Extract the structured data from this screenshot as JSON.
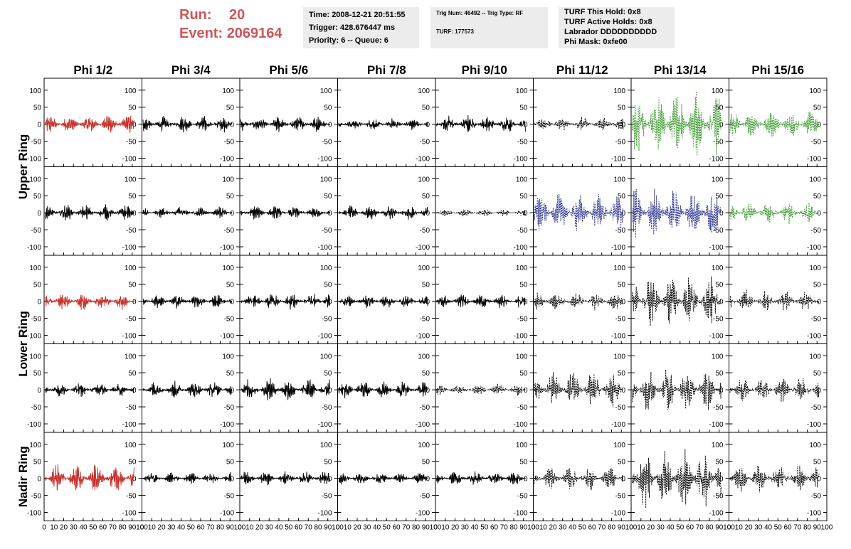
{
  "header": {
    "run_label": "Run:",
    "run_value": "20",
    "event_label": "Event:",
    "event_value": "2069164",
    "time": "Time: 2008-12-21 20:51:55",
    "trigger": "Trigger: 428.676447 ms",
    "priority": "Priority: 6 -- Queue: 6",
    "trig_num": "Trig Num: 46492 -- Trig Type: RF",
    "turf": "TURF: 177573",
    "turf_this_hold": "TURF This Hold: 0x8",
    "turf_active_holds": "TURF Active Holds: 0x8",
    "labrador": "Labrador DDDDDDDDDD",
    "phi_mask": "Phi Mask: 0xfe00"
  },
  "chart_data": {
    "type": "line",
    "columns": [
      "Phi 1/2",
      "Phi 3/4",
      "Phi 5/6",
      "Phi 7/8",
      "Phi 9/10",
      "Phi 11/12",
      "Phi 13/14",
      "Phi 15/16"
    ],
    "row_labels": [
      {
        "text": "Upper Ring",
        "rows": [
          0,
          1
        ]
      },
      {
        "text": "Lower Ring",
        "rows": [
          2,
          3
        ]
      },
      {
        "text": "Nadir Ring",
        "rows": [
          4
        ]
      }
    ],
    "xlim": [
      0,
      100
    ],
    "ylim": [
      -125,
      135
    ],
    "y_ticks": [
      -100,
      -50,
      0,
      50,
      100
    ],
    "y_tick_labels": [
      "-100",
      "-50",
      "0",
      "50",
      "100"
    ],
    "x_ticks": [
      0,
      10,
      20,
      30,
      40,
      50,
      60,
      70,
      80,
      90,
      100
    ],
    "x_tick_labels": [
      "0",
      "10",
      "20",
      "30",
      "40",
      "50",
      "60",
      "70",
      "80",
      "90",
      "100"
    ],
    "colors": {
      "black": "#000000",
      "red": "#c8312c",
      "green": "#3a9a2e",
      "blue": "#2b2f8f"
    },
    "panels": [
      [
        {
          "color": "red",
          "style": "solid",
          "amp": 25
        },
        {
          "color": "black",
          "style": "solid",
          "amp": 20
        },
        {
          "color": "black",
          "style": "solid",
          "amp": 20
        },
        {
          "color": "black",
          "style": "solid",
          "amp": 15
        },
        {
          "color": "black",
          "style": "solid",
          "amp": 22
        },
        {
          "color": "black",
          "style": "dashed",
          "amp": 18
        },
        {
          "color": "green",
          "style": "dashed",
          "amp": 80
        },
        {
          "color": "green",
          "style": "dashed",
          "amp": 35
        }
      ],
      [
        {
          "color": "black",
          "style": "solid",
          "amp": 20
        },
        {
          "color": "black",
          "style": "solid",
          "amp": 15
        },
        {
          "color": "black",
          "style": "solid",
          "amp": 18
        },
        {
          "color": "black",
          "style": "solid",
          "amp": 18
        },
        {
          "color": "black",
          "style": "dashed",
          "amp": 10
        },
        {
          "color": "blue",
          "style": "dashed",
          "amp": 55
        },
        {
          "color": "blue",
          "style": "dashed",
          "amp": 65
        },
        {
          "color": "green",
          "style": "dashed",
          "amp": 28
        }
      ],
      [
        {
          "color": "red",
          "style": "solid",
          "amp": 22
        },
        {
          "color": "black",
          "style": "solid",
          "amp": 18
        },
        {
          "color": "black",
          "style": "solid",
          "amp": 22
        },
        {
          "color": "black",
          "style": "solid",
          "amp": 18
        },
        {
          "color": "black",
          "style": "solid",
          "amp": 18
        },
        {
          "color": "black",
          "style": "dashed",
          "amp": 22
        },
        {
          "color": "black",
          "style": "dashed",
          "amp": 65
        },
        {
          "color": "black",
          "style": "dashed",
          "amp": 28
        }
      ],
      [
        {
          "color": "black",
          "style": "solid",
          "amp": 18
        },
        {
          "color": "black",
          "style": "solid",
          "amp": 22
        },
        {
          "color": "black",
          "style": "solid",
          "amp": 28
        },
        {
          "color": "black",
          "style": "solid",
          "amp": 22
        },
        {
          "color": "black",
          "style": "dashed",
          "amp": 15
        },
        {
          "color": "black",
          "style": "dashed",
          "amp": 45
        },
        {
          "color": "black",
          "style": "dashed",
          "amp": 55
        },
        {
          "color": "black",
          "style": "dashed",
          "amp": 32
        }
      ],
      [
        {
          "color": "red",
          "style": "solid",
          "amp": 38
        },
        {
          "color": "black",
          "style": "solid",
          "amp": 15
        },
        {
          "color": "black",
          "style": "solid",
          "amp": 18
        },
        {
          "color": "black",
          "style": "solid",
          "amp": 15
        },
        {
          "color": "black",
          "style": "solid",
          "amp": 18
        },
        {
          "color": "black",
          "style": "dashed",
          "amp": 30
        },
        {
          "color": "black",
          "style": "dashed",
          "amp": 80
        },
        {
          "color": "black",
          "style": "dashed",
          "amp": 35
        }
      ]
    ]
  }
}
